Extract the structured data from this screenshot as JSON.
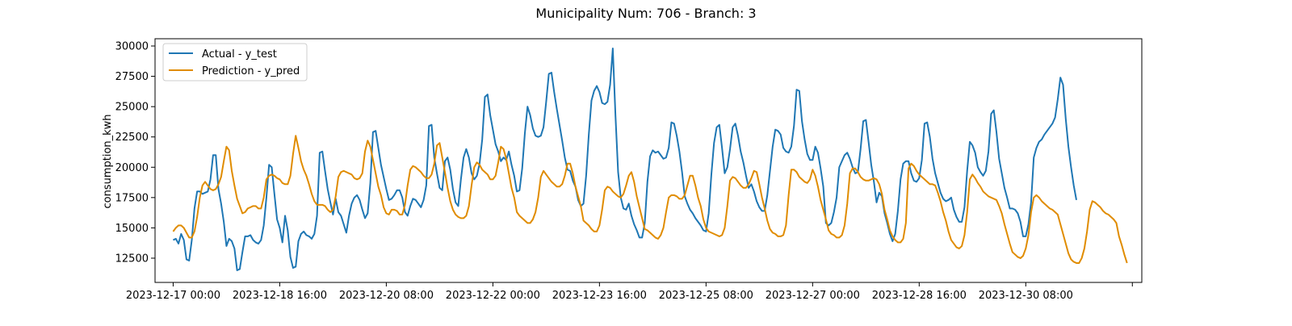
{
  "chart_data": {
    "type": "line",
    "title": "Municipality Num: 706 - Branch: 3",
    "xlabel": "",
    "ylabel": "consumption_kwh",
    "x_start": "2023-12-17 00:00",
    "x_step_hours": 1,
    "xlim": [
      "2023-12-16 17:12",
      "2024-01-01 03:33"
    ],
    "ylim": [
      10500,
      30600
    ],
    "grid": false,
    "legend_position": "upper-left",
    "yticks": [
      12500,
      15000,
      17500,
      20000,
      22500,
      25000,
      27500,
      30000
    ],
    "ytick_labels": [
      "12500",
      "15000",
      "17500",
      "20000",
      "22500",
      "25000",
      "27500",
      "30000"
    ],
    "xticks": [
      "2023-12-17 00:00",
      "2023-12-18 16:00",
      "2023-12-20 08:00",
      "2023-12-22 00:00",
      "2023-12-23 16:00",
      "2023-12-25 08:00",
      "2023-12-27 00:00",
      "2023-12-28 16:00",
      "2023-12-30 08:00",
      "2024-01-01 00:00"
    ],
    "xtick_labels": [
      "2023-12-17 00:00",
      "2023-12-18 16:00",
      "2023-12-20 08:00",
      "2023-12-22 00:00",
      "2023-12-23 16:00",
      "2023-12-25 08:00",
      "2023-12-27 00:00",
      "2023-12-28 16:00",
      "2023-12-30 08:00",
      ""
    ],
    "series": [
      {
        "name": "Actual - y_test",
        "color": "#1f77b4",
        "values": [
          14000,
          14100,
          13700,
          14500,
          14000,
          12400,
          12300,
          14000,
          16600,
          18000,
          18000,
          17800,
          17900,
          18000,
          19000,
          21000,
          21000,
          18200,
          17000,
          15500,
          13500,
          14100,
          13900,
          13300,
          11500,
          11600,
          13000,
          14300,
          14300,
          14400,
          14000,
          13800,
          13700,
          14000,
          15200,
          17500,
          20200,
          20000,
          17800,
          15700,
          15000,
          13800,
          16000,
          14800,
          12600,
          11700,
          11800,
          13900,
          14500,
          14700,
          14400,
          14300,
          14100,
          14500,
          16000,
          21200,
          21300,
          19700,
          18200,
          17100,
          16100,
          17400,
          16300,
          16000,
          15300,
          14600,
          16000,
          17000,
          17500,
          17700,
          17300,
          16500,
          15800,
          16200,
          18700,
          22900,
          23000,
          21600,
          20200,
          19200,
          18200,
          17300,
          17400,
          17700,
          18100,
          18100,
          17500,
          16300,
          16000,
          16800,
          17400,
          17300,
          17000,
          16700,
          17300,
          18500,
          23400,
          23500,
          20800,
          19500,
          18300,
          18100,
          20500,
          20800,
          19800,
          18200,
          17100,
          16800,
          19000,
          20800,
          21500,
          20800,
          19500,
          19000,
          19300,
          20300,
          22300,
          25800,
          26000,
          24300,
          23100,
          21900,
          21300,
          20500,
          20800,
          20600,
          21300,
          20200,
          19300,
          18000,
          18100,
          19900,
          22800,
          25000,
          24300,
          23200,
          22600,
          22500,
          22600,
          23300,
          25400,
          27700,
          27800,
          26200,
          24800,
          23500,
          22200,
          20800,
          19800,
          19700,
          18900,
          18400,
          17300,
          16800,
          17000,
          19300,
          22700,
          25500,
          26300,
          26700,
          26200,
          25300,
          25200,
          25400,
          26800,
          29800,
          24300,
          19600,
          17500,
          16600,
          16500,
          17000,
          16000,
          15300,
          14800,
          14200,
          14200,
          15400,
          18800,
          20900,
          21400,
          21200,
          21300,
          21000,
          20700,
          20800,
          21600,
          23700,
          23600,
          22600,
          21300,
          19600,
          17600,
          17000,
          16500,
          16200,
          15800,
          15500,
          15200,
          14800,
          14700,
          16200,
          19400,
          22000,
          23300,
          23500,
          21600,
          19500,
          20000,
          21500,
          23300,
          23600,
          22600,
          21300,
          20400,
          19300,
          18300,
          18600,
          18000,
          17200,
          16700,
          16400,
          16400,
          17700,
          19700,
          21700,
          23100,
          23000,
          22700,
          21600,
          21300,
          21200,
          21700,
          23400,
          26400,
          26300,
          23800,
          22300,
          21100,
          20600,
          20600,
          21700,
          21200,
          19900,
          18400,
          15400,
          15200,
          15400,
          16300,
          17500,
          20000,
          20500,
          21000,
          21200,
          20700,
          20000,
          19500,
          19600,
          21500,
          23800,
          23900,
          22100,
          20200,
          18800,
          17100,
          17900,
          17600,
          16200,
          15400,
          14500,
          13900,
          14500,
          16400,
          19000,
          20300,
          20500,
          20500,
          19500,
          18900,
          18800,
          19100,
          20600,
          23600,
          23700,
          22500,
          20700,
          19500,
          18700,
          17900,
          17400,
          17200,
          17300,
          17500,
          16500,
          15900,
          15500,
          15500,
          16700,
          19700,
          22100,
          21800,
          21200,
          20000,
          19600,
          19300,
          19700,
          21300,
          24400,
          24700,
          22900,
          20700,
          19500,
          18300,
          17500,
          16600,
          16600,
          16500,
          16200,
          15500,
          14300,
          14300,
          15300,
          17100,
          20800,
          21600,
          22100,
          22300,
          22700,
          23000,
          23300,
          23600,
          24100,
          25600,
          27400,
          26800,
          24000,
          21700,
          20000,
          18500,
          17300
        ]
      },
      {
        "name": "Prediction - y_pred",
        "color": "#e08c00",
        "values": [
          14700,
          15000,
          15200,
          15200,
          15000,
          14600,
          14200,
          14200,
          14700,
          15900,
          17500,
          18500,
          18800,
          18500,
          18200,
          18100,
          18200,
          18600,
          19200,
          20500,
          21700,
          21400,
          19700,
          18500,
          17400,
          16800,
          16200,
          16300,
          16600,
          16700,
          16800,
          16800,
          16600,
          16600,
          17500,
          19000,
          19300,
          19400,
          19300,
          19100,
          19000,
          18700,
          18600,
          18600,
          19300,
          21100,
          22600,
          21600,
          20500,
          19800,
          19300,
          18600,
          17800,
          17200,
          16900,
          16900,
          16900,
          16800,
          16500,
          16300,
          16500,
          17600,
          19200,
          19600,
          19700,
          19600,
          19500,
          19400,
          19100,
          19000,
          19100,
          19500,
          21300,
          22200,
          21700,
          20600,
          19500,
          18400,
          17700,
          16700,
          16200,
          16100,
          16500,
          16500,
          16400,
          16100,
          16100,
          16900,
          18500,
          19800,
          20100,
          20000,
          19800,
          19600,
          19300,
          19100,
          19100,
          19400,
          20300,
          21800,
          22000,
          20800,
          19600,
          18300,
          17200,
          16500,
          16100,
          15900,
          15800,
          15800,
          16000,
          16800,
          18500,
          20000,
          20400,
          20200,
          19800,
          19600,
          19400,
          19000,
          19000,
          19300,
          20400,
          21700,
          21500,
          20700,
          19500,
          18300,
          17500,
          16300,
          16000,
          15800,
          15600,
          15400,
          15400,
          15700,
          16300,
          17500,
          19200,
          19700,
          19400,
          19100,
          18800,
          18600,
          18400,
          18400,
          18600,
          19300,
          20300,
          20300,
          19500,
          18400,
          17600,
          16800,
          15600,
          15400,
          15200,
          14900,
          14700,
          14700,
          15200,
          16500,
          18100,
          18400,
          18300,
          18000,
          17800,
          17600,
          17500,
          17800,
          18500,
          19300,
          19600,
          18800,
          17600,
          16700,
          15800,
          14900,
          14800,
          14600,
          14400,
          14200,
          14100,
          14400,
          15000,
          16300,
          17500,
          17700,
          17700,
          17600,
          17400,
          17400,
          17700,
          18500,
          19300,
          19300,
          18500,
          17500,
          16800,
          15700,
          15000,
          14700,
          14600,
          14500,
          14400,
          14300,
          14400,
          15000,
          16800,
          18900,
          19200,
          19100,
          18800,
          18500,
          18300,
          18300,
          18600,
          19100,
          19700,
          19600,
          18600,
          17500,
          16600,
          15600,
          14900,
          14600,
          14500,
          14300,
          14300,
          14400,
          15200,
          17700,
          19800,
          19800,
          19600,
          19200,
          19000,
          18800,
          18700,
          19000,
          19800,
          19300,
          18400,
          17300,
          16500,
          15700,
          14800,
          14500,
          14400,
          14200,
          14200,
          14400,
          15200,
          17000,
          19500,
          19900,
          19900,
          19600,
          19200,
          19000,
          18900,
          18900,
          19000,
          19100,
          19000,
          18600,
          17800,
          16500,
          15700,
          14800,
          14300,
          14000,
          13800,
          13800,
          14100,
          15400,
          19900,
          20300,
          20100,
          19700,
          19400,
          19200,
          19000,
          18800,
          18600,
          18600,
          18500,
          17900,
          17200,
          16300,
          15600,
          14700,
          14000,
          13700,
          13400,
          13300,
          13500,
          14400,
          16300,
          19000,
          19400,
          19100,
          18700,
          18400,
          18000,
          17800,
          17600,
          17500,
          17400,
          17300,
          16800,
          16200,
          15300,
          14500,
          13700,
          13000,
          12800,
          12600,
          12500,
          12700,
          13300,
          14400,
          16300,
          17500,
          17700,
          17500,
          17200,
          17000,
          16800,
          16600,
          16500,
          16300,
          16100,
          15300,
          14500,
          13700,
          12900,
          12400,
          12200,
          12100,
          12100,
          12500,
          13300,
          14700,
          16500,
          17200,
          17100,
          16900,
          16700,
          16400,
          16200,
          16100,
          15900,
          15700,
          15400,
          14300,
          13600,
          12800,
          12100
        ]
      }
    ]
  }
}
